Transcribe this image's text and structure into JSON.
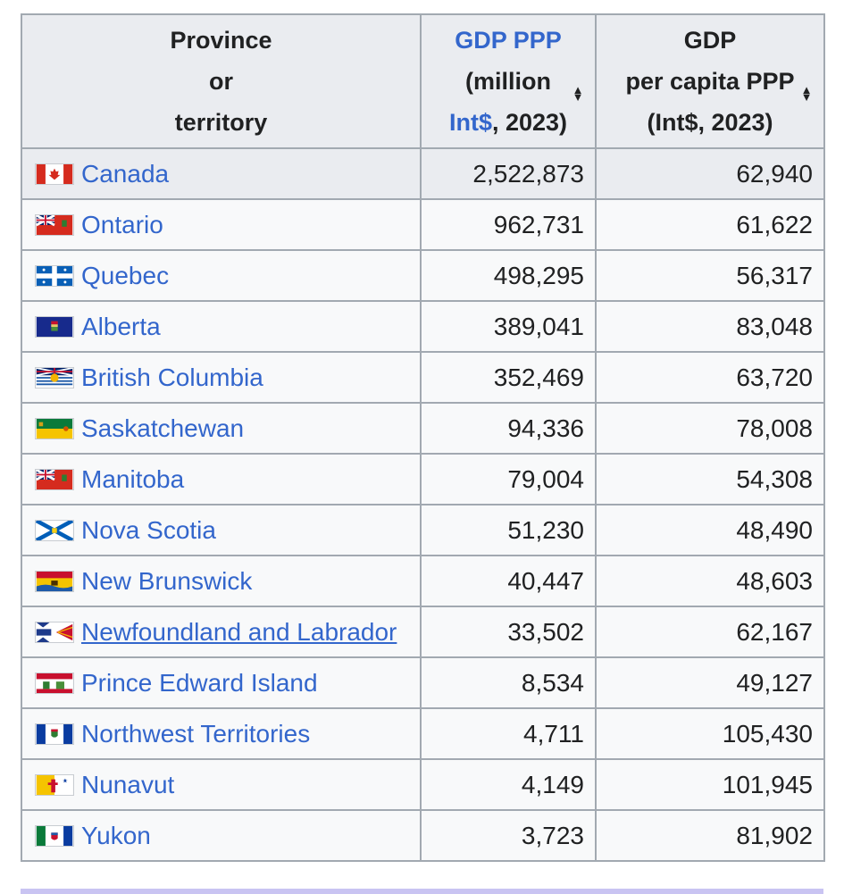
{
  "table": {
    "headers": {
      "province": [
        "Province",
        "or",
        "territory"
      ],
      "gdp": {
        "line1": "GDP PPP",
        "line2": "(million",
        "line3_link": "Int$",
        "line3_rest": ", 2023)"
      },
      "per_capita": [
        "GDP",
        "per capita PPP",
        "(Int$, 2023)"
      ]
    },
    "rows": [
      {
        "name": "Canada",
        "flag": "canada-flag-icon",
        "gdp": "2,522,873",
        "per_capita": "62,940"
      },
      {
        "name": "Ontario",
        "flag": "ontario-flag-icon",
        "gdp": "962,731",
        "per_capita": "61,622"
      },
      {
        "name": "Quebec",
        "flag": "quebec-flag-icon",
        "gdp": "498,295",
        "per_capita": "56,317"
      },
      {
        "name": "Alberta",
        "flag": "alberta-flag-icon",
        "gdp": "389,041",
        "per_capita": "83,048"
      },
      {
        "name": "British Columbia",
        "flag": "british-columbia-flag-icon",
        "gdp": "352,469",
        "per_capita": "63,720"
      },
      {
        "name": "Saskatchewan",
        "flag": "saskatchewan-flag-icon",
        "gdp": "94,336",
        "per_capita": "78,008"
      },
      {
        "name": "Manitoba",
        "flag": "manitoba-flag-icon",
        "gdp": "79,004",
        "per_capita": "54,308"
      },
      {
        "name": "Nova Scotia",
        "flag": "nova-scotia-flag-icon",
        "gdp": "51,230",
        "per_capita": "48,490"
      },
      {
        "name": "New Brunswick",
        "flag": "new-brunswick-flag-icon",
        "gdp": "40,447",
        "per_capita": "48,603"
      },
      {
        "name": "Newfoundland and Labrador",
        "flag": "newfoundland-flag-icon",
        "gdp": "33,502",
        "per_capita": "62,167"
      },
      {
        "name": "Prince Edward Island",
        "flag": "pei-flag-icon",
        "gdp": "8,534",
        "per_capita": "49,127"
      },
      {
        "name": "Northwest Territories",
        "flag": "nwt-flag-icon",
        "gdp": "4,711",
        "per_capita": "105,430"
      },
      {
        "name": "Nunavut",
        "flag": "nunavut-flag-icon",
        "gdp": "4,149",
        "per_capita": "101,945"
      },
      {
        "name": "Yukon",
        "flag": "yukon-flag-icon",
        "gdp": "3,723",
        "per_capita": "81,902"
      }
    ]
  },
  "colors": {
    "link": "#3366cc",
    "header_bg": "#eaecf0",
    "row_bg": "#f8f9fa",
    "border": "#a2a9b1"
  }
}
